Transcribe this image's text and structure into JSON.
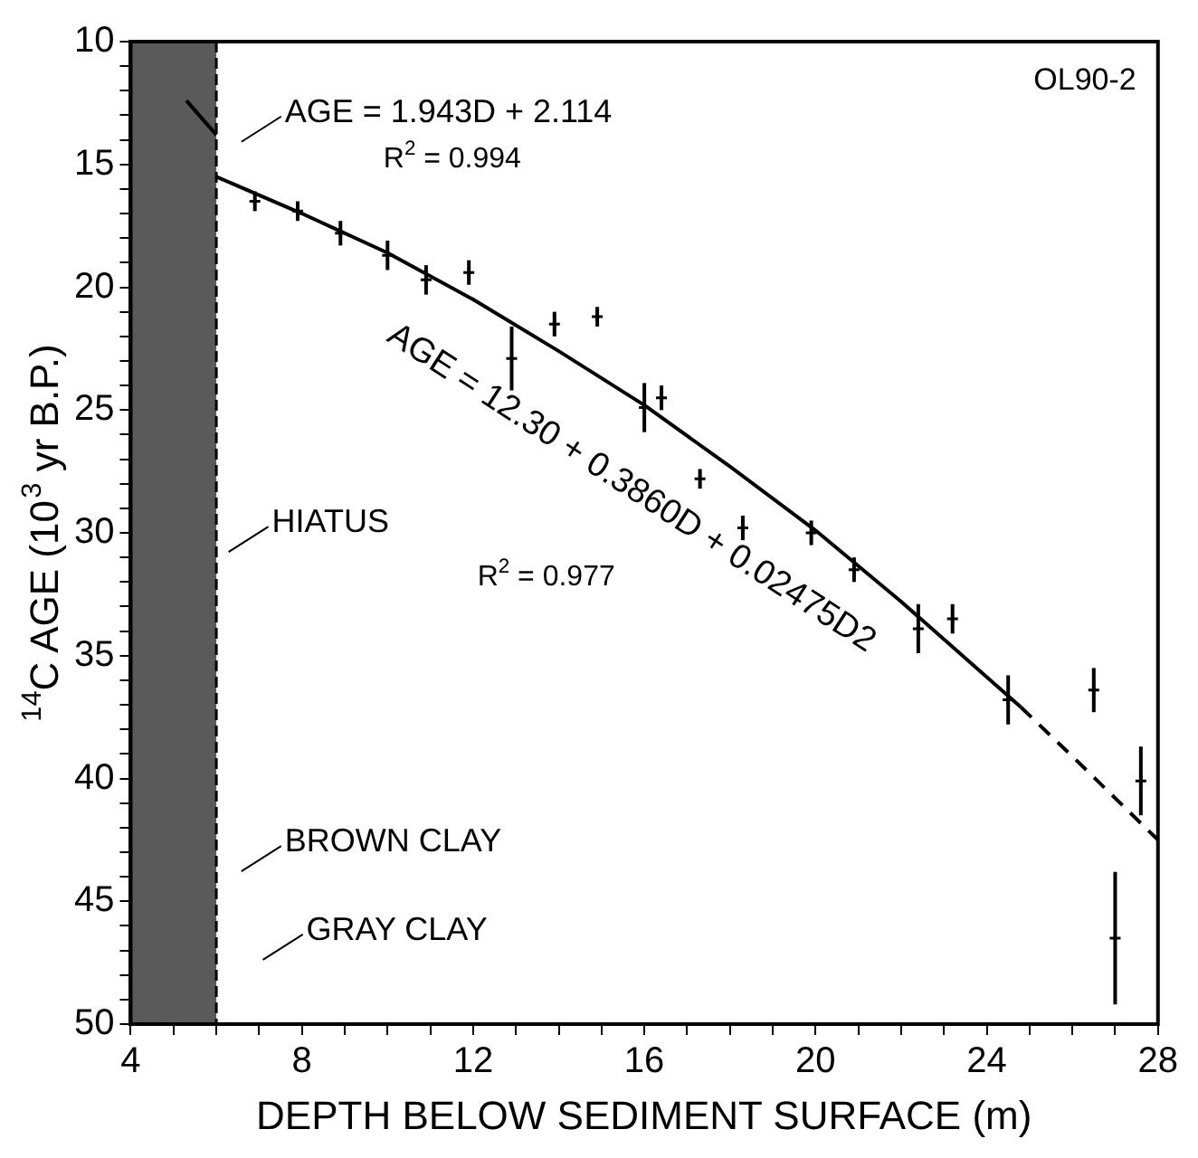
{
  "chart_data": {
    "type": "scatter",
    "xlabel": "DEPTH BELOW SEDIMENT SURFACE (m)",
    "ylabel": "$^{14}$C AGE (10$^{3}$ yr B.P.)",
    "xlim": [
      4,
      28
    ],
    "xticks": [
      4,
      {
        "value": 5,
        "label": null
      },
      {
        "value": 6,
        "label": null
      },
      {
        "value": 7,
        "label": null
      },
      8,
      {
        "value": 9,
        "label": null
      },
      {
        "value": 10,
        "label": null
      },
      {
        "value": 11,
        "label": null
      },
      12,
      {
        "value": 13,
        "label": null
      },
      {
        "value": 14,
        "label": null
      },
      {
        "value": 15,
        "label": null
      },
      16,
      {
        "value": 17,
        "label": null
      },
      {
        "value": 18,
        "label": null
      },
      {
        "value": 19,
        "label": null
      },
      20,
      {
        "value": 21,
        "label": null
      },
      {
        "value": 22,
        "label": null
      },
      {
        "value": 23,
        "label": null
      },
      24,
      {
        "value": 25,
        "label": null
      },
      {
        "value": 26,
        "label": null
      },
      {
        "value": 27,
        "label": null
      },
      28
    ],
    "ylim": [
      50,
      10
    ],
    "yticks": [
      10,
      {
        "value": 11,
        "label": null
      },
      {
        "value": 12,
        "label": null
      },
      {
        "value": 13,
        "label": null
      },
      {
        "value": 14,
        "label": null
      },
      15,
      {
        "value": 16,
        "label": null
      },
      {
        "value": 17,
        "label": null
      },
      {
        "value": 18,
        "label": null
      },
      {
        "value": 19,
        "label": null
      },
      20,
      {
        "value": 21,
        "label": null
      },
      {
        "value": 22,
        "label": null
      },
      {
        "value": 23,
        "label": null
      },
      {
        "value": 24,
        "label": null
      },
      25,
      {
        "value": 26,
        "label": null
      },
      {
        "value": 27,
        "label": null
      },
      {
        "value": 28,
        "label": null
      },
      {
        "value": 29,
        "label": null
      },
      30,
      {
        "value": 31,
        "label": null
      },
      {
        "value": 32,
        "label": null
      },
      {
        "value": 33,
        "label": null
      },
      {
        "value": 34,
        "label": null
      },
      35,
      {
        "value": 36,
        "label": null
      },
      {
        "value": 37,
        "label": null
      },
      {
        "value": 38,
        "label": null
      },
      {
        "value": 39,
        "label": null
      },
      40,
      {
        "value": 41,
        "label": null
      },
      {
        "value": 42,
        "label": null
      },
      {
        "value": 43,
        "label": null
      },
      {
        "value": 44,
        "label": null
      },
      45,
      {
        "value": 46,
        "label": null
      },
      {
        "value": 47,
        "label": null
      },
      {
        "value": 48,
        "label": null
      },
      {
        "value": 49,
        "label": null
      },
      50
    ],
    "series": [
      {
        "color": "#000000",
        "marker": "cross",
        "x": [
          6.9,
          7.9,
          8.9,
          10.0,
          10.9,
          11.9,
          12.9,
          13.9,
          14.9,
          16.0,
          16.4,
          17.3,
          18.3,
          19.9,
          20.9,
          22.4,
          23.2,
          24.5,
          26.5,
          27.6,
          27.0
        ],
        "values": [
          16.5,
          16.9,
          17.8,
          18.7,
          19.7,
          19.4,
          22.9,
          21.5,
          21.2,
          24.9,
          24.5,
          27.8,
          29.8,
          30.0,
          31.5,
          33.9,
          33.5,
          36.8,
          36.4,
          40.1,
          46.5
        ],
        "errors": [
          0.4,
          0.4,
          0.5,
          0.6,
          0.6,
          0.5,
          1.3,
          0.5,
          0.4,
          1.0,
          0.5,
          0.4,
          0.5,
          0.5,
          0.5,
          1.0,
          0.6,
          1.0,
          0.9,
          1.4,
          2.7
        ]
      },
      {
        "type": "line",
        "color": "#000000",
        "marker": "none",
        "line_style": "solid",
        "x": [
          6,
          8,
          10,
          12,
          14,
          16,
          18,
          20,
          22,
          24.8
        ],
        "values": [
          15.5,
          17.0,
          18.6,
          20.5,
          22.6,
          24.8,
          27.3,
          29.9,
          32.8,
          37.1
        ]
      },
      {
        "type": "line",
        "color": "#000000",
        "marker": "none",
        "line_style": "dashed",
        "x": [
          24.8,
          26,
          28
        ],
        "values": [
          37.1,
          39.1,
          42.5
        ]
      },
      {
        "type": "line",
        "color": "#000000",
        "marker": "none",
        "line_style": "solid",
        "x": [
          5.3,
          6
        ],
        "values": [
          12.4,
          13.8
        ]
      }
    ],
    "bands": [
      {
        "axis": "x",
        "from": 4,
        "to": 6,
        "color": "#5a5a5a"
      }
    ],
    "annotations": [
      "AGE = 1.943D + 2.114",
      "R$^{2}$ = 0.994",
      "AGE = 12.30 + 0.3860D + 0.02475D2",
      "R$^{2}$ = 0.977",
      "HIATUS",
      "BROWN CLAY",
      "GRAY CLAY",
      "OL90-2"
    ]
  }
}
